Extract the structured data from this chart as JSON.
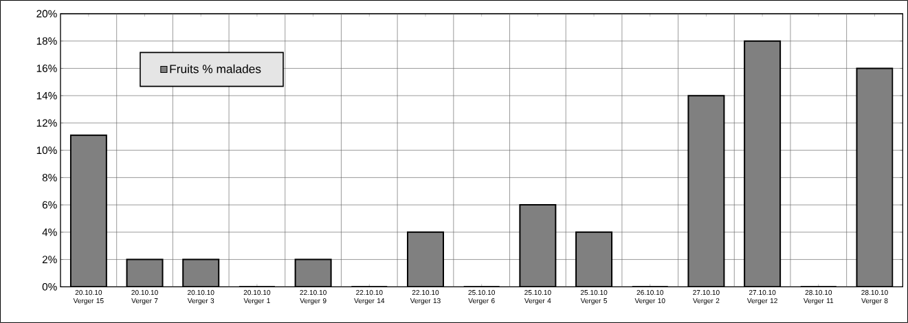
{
  "chart_data": {
    "type": "bar",
    "categories": [
      "20.10.10 Verger 15",
      "20.10.10 Verger 7",
      "20.10.10 Verger 3",
      "20.10.10 Verger 1",
      "22.10.10 Verger 9",
      "22.10.10 Verger 14",
      "22.10.10 Verger 13",
      "25.10.10 Verger 6",
      "25.10.10 Verger 4",
      "25.10.10 Verger 5",
      "26.10.10 Verger 10",
      "27.10.10 Verger 2",
      "27.10.10 Verger 12",
      "28.10.10 Verger 11",
      "28.10.10 Verger 8"
    ],
    "series": [
      {
        "name": "Fruits % malades",
        "color": "#808080",
        "values": [
          11.1,
          2,
          2,
          0,
          2,
          0,
          4,
          0,
          6,
          4,
          0,
          14,
          18,
          0,
          16
        ]
      }
    ],
    "ylim": [
      0,
      20
    ],
    "yticks": [
      {
        "value": 0,
        "label": "0%"
      },
      {
        "value": 2,
        "label": "2%"
      },
      {
        "value": 4,
        "label": "4%"
      },
      {
        "value": 6,
        "label": "6%"
      },
      {
        "value": 8,
        "label": "8%"
      },
      {
        "value": 10,
        "label": "10%"
      },
      {
        "value": 12,
        "label": "12%"
      },
      {
        "value": 14,
        "label": "14%"
      },
      {
        "value": 16,
        "label": "16%"
      },
      {
        "value": 18,
        "label": "18%"
      },
      {
        "value": 20,
        "label": "20%"
      }
    ],
    "grid": true,
    "legend": "top left"
  }
}
